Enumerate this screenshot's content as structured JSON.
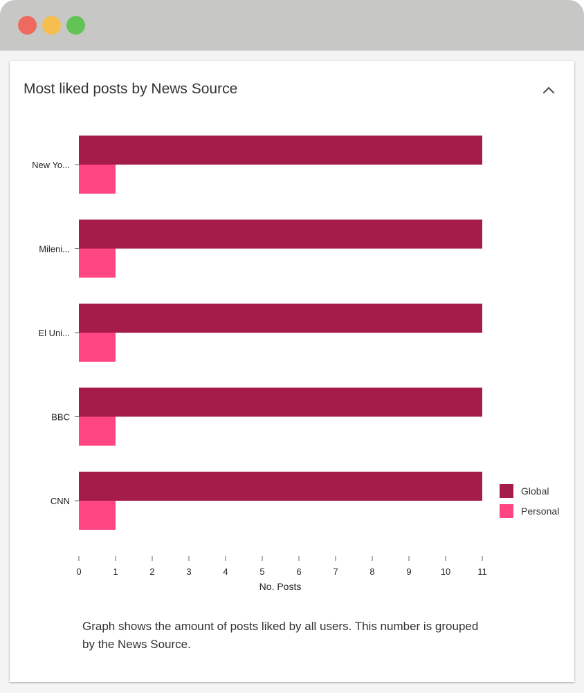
{
  "window": {
    "controls": [
      "close",
      "minimize",
      "maximize"
    ]
  },
  "card": {
    "title": "Most liked posts by News Source",
    "collapse_icon": "chevron-up-icon",
    "caption": "Graph shows the amount of posts liked by all users. This number is grouped by the News Source."
  },
  "colors": {
    "global": "#a51c4a",
    "personal": "#ff4582"
  },
  "chart_data": {
    "type": "bar",
    "orientation": "horizontal",
    "categories": [
      "New Yo...",
      "Mileni...",
      "El Uni...",
      "BBC",
      "CNN"
    ],
    "series": [
      {
        "name": "Global",
        "values": [
          11,
          11,
          11,
          11,
          11
        ]
      },
      {
        "name": "Personal",
        "values": [
          1,
          1,
          1,
          1,
          1
        ]
      }
    ],
    "xlabel": "No. Posts",
    "ylabel": "",
    "xlim": [
      0,
      11
    ],
    "xticks": [
      "0",
      "1",
      "2",
      "3",
      "4",
      "5",
      "6",
      "7",
      "8",
      "9",
      "10",
      "11"
    ],
    "grid": false,
    "legend": "right"
  }
}
